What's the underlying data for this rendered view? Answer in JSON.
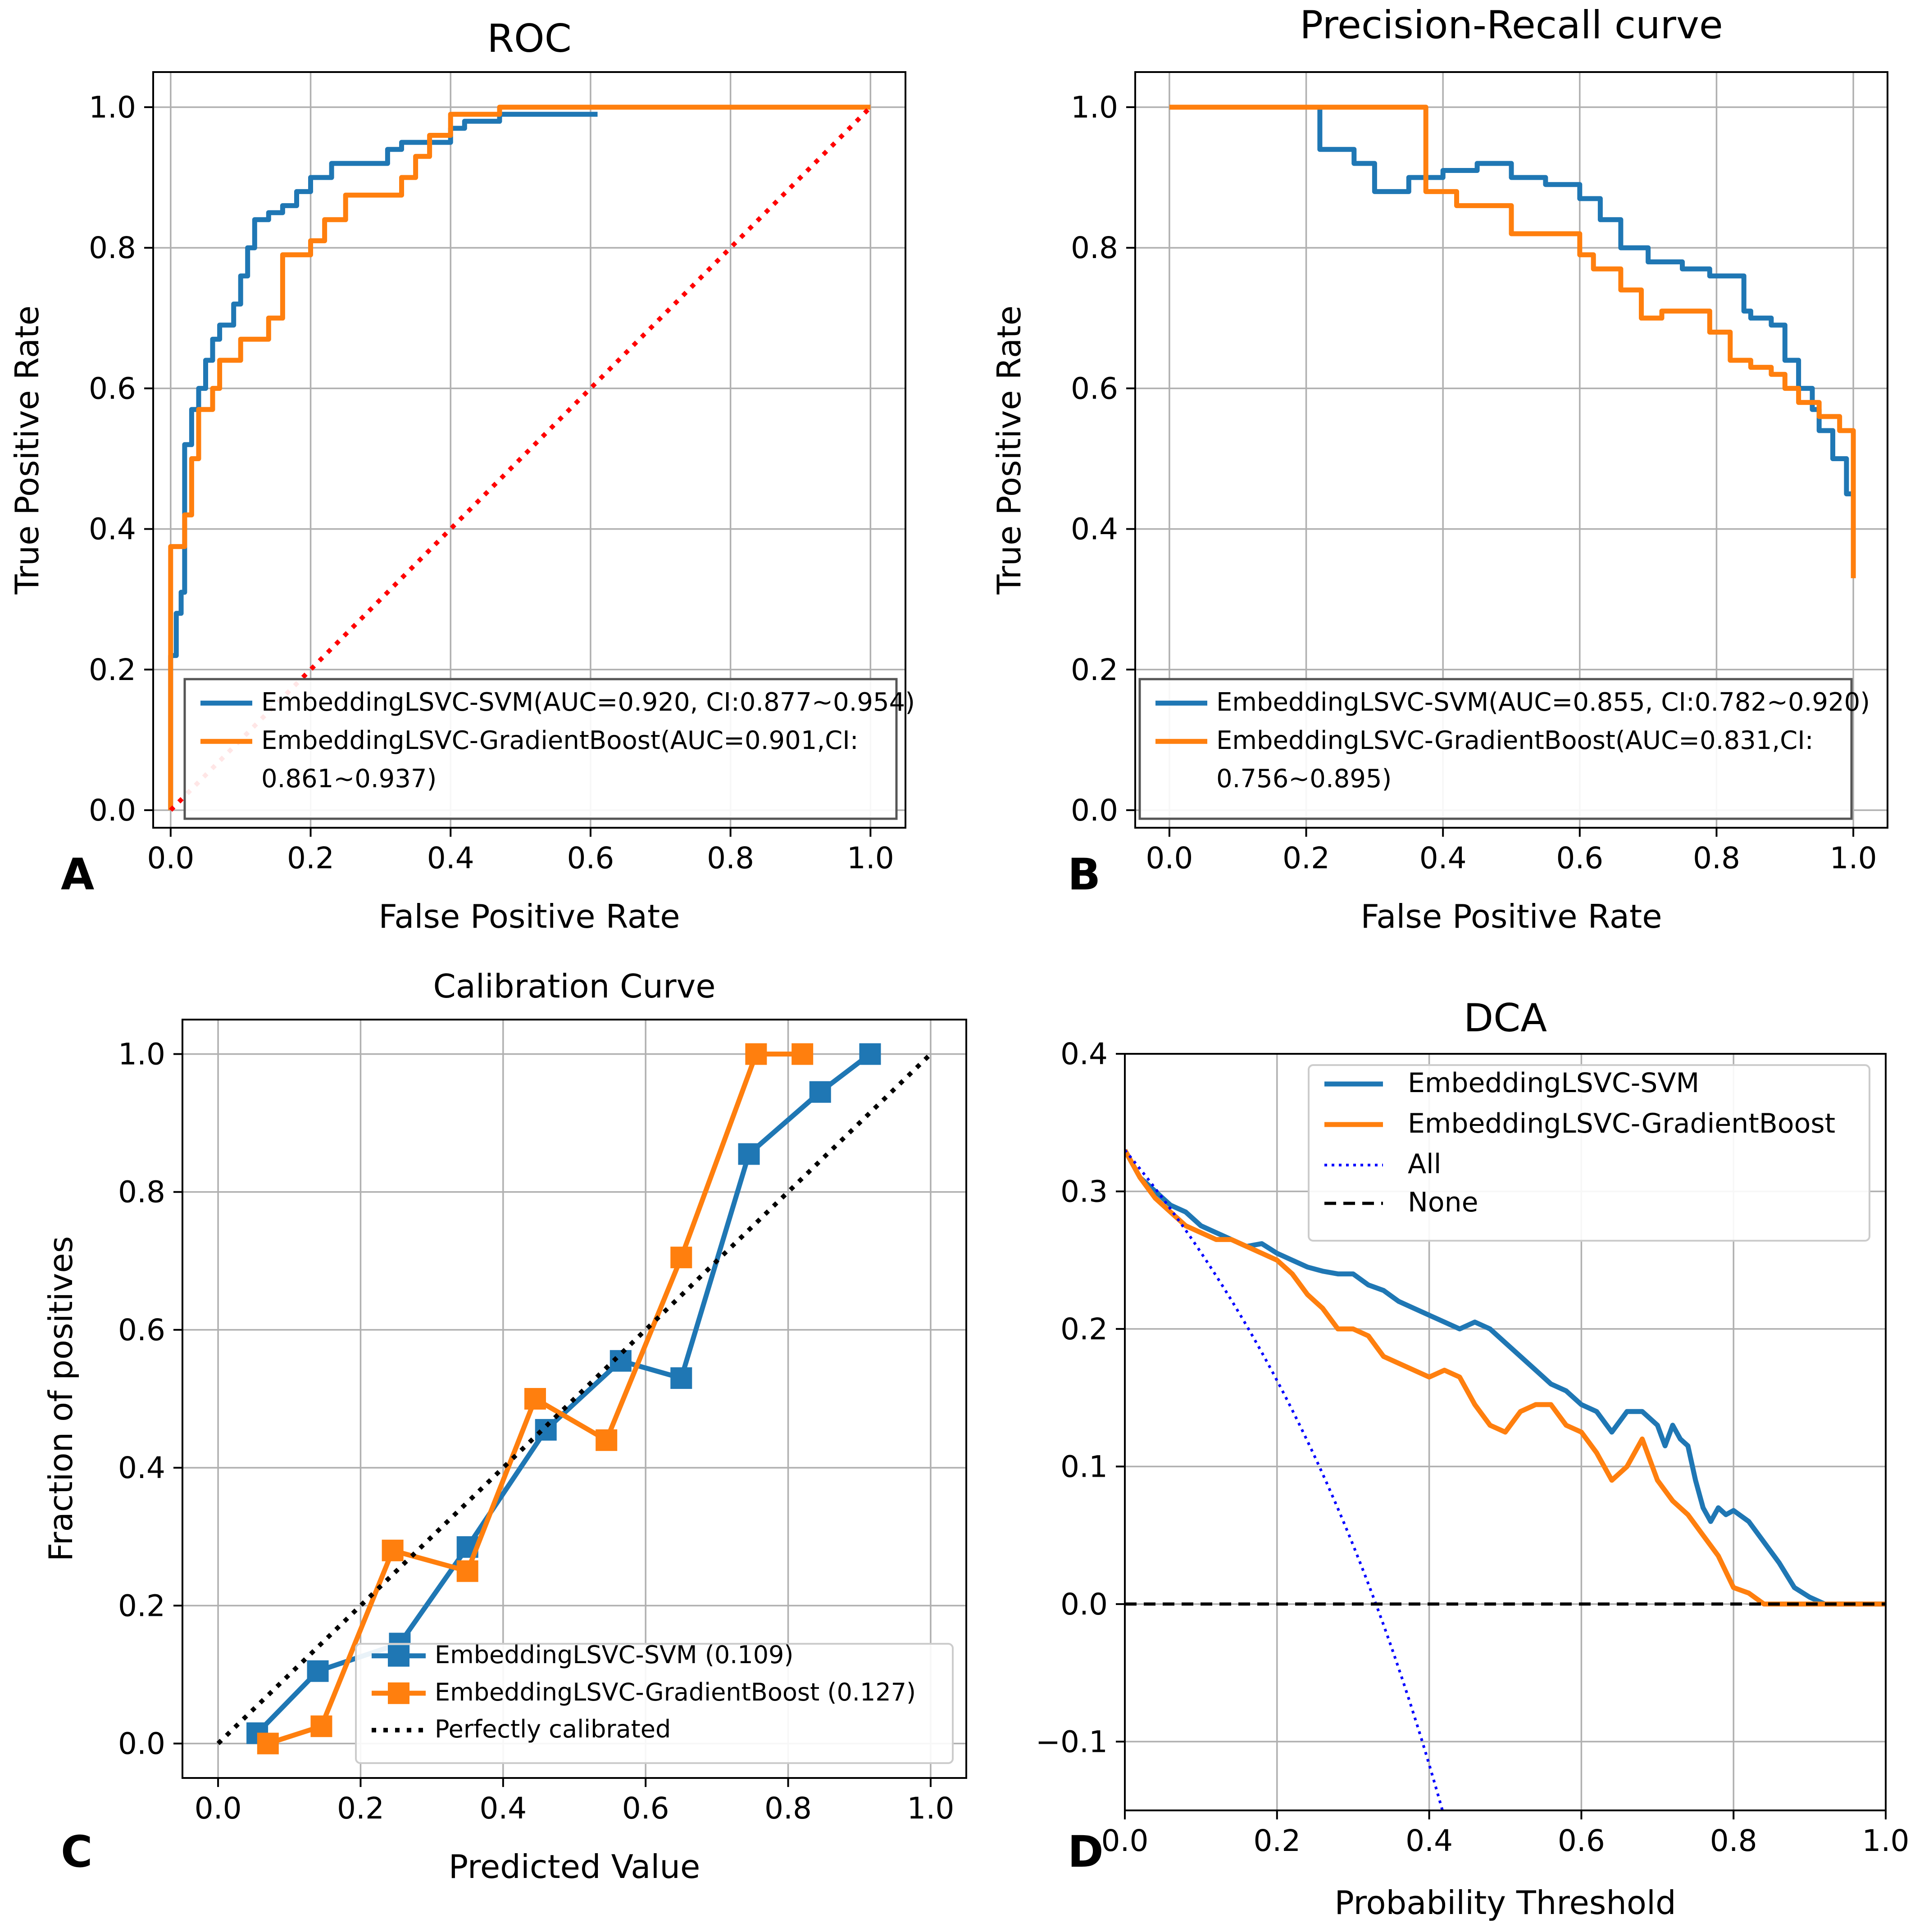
{
  "chart_data": [
    {
      "panel_letter": "A",
      "type": "line",
      "title": "ROC",
      "xlabel": "False Positive Rate",
      "ylabel": "True Positive Rate",
      "xlim": [
        -0.025,
        1.05
      ],
      "ylim": [
        -0.025,
        1.05
      ],
      "xticks": [
        0.0,
        0.2,
        0.4,
        0.6,
        0.8,
        1.0
      ],
      "yticks": [
        0.0,
        0.2,
        0.4,
        0.6,
        0.8,
        1.0
      ],
      "xtick_labels": [
        "0.0",
        "0.2",
        "0.4",
        "0.6",
        "0.8",
        "1.0"
      ],
      "ytick_labels": [
        "0.0",
        "0.2",
        "0.4",
        "0.6",
        "0.8",
        "1.0"
      ],
      "grid": true,
      "legend_position": "lower-right",
      "series": [
        {
          "name": "EmbeddingLSVC-SVM(AUC=0.920, CI:0.877~0.954)",
          "color": "#1f77b4",
          "step": true,
          "x": [
            0.0,
            0.0,
            0.008,
            0.008,
            0.015,
            0.015,
            0.02,
            0.02,
            0.03,
            0.03,
            0.04,
            0.04,
            0.05,
            0.05,
            0.06,
            0.06,
            0.07,
            0.07,
            0.09,
            0.09,
            0.1,
            0.1,
            0.11,
            0.11,
            0.12,
            0.12,
            0.14,
            0.14,
            0.16,
            0.16,
            0.18,
            0.18,
            0.2,
            0.2,
            0.23,
            0.23,
            0.31,
            0.31,
            0.33,
            0.33,
            0.4,
            0.4,
            0.42,
            0.42,
            0.47,
            0.47,
            0.61
          ],
          "y": [
            0.0,
            0.22,
            0.22,
            0.28,
            0.28,
            0.31,
            0.31,
            0.52,
            0.52,
            0.57,
            0.57,
            0.6,
            0.6,
            0.64,
            0.64,
            0.67,
            0.67,
            0.69,
            0.69,
            0.72,
            0.72,
            0.76,
            0.76,
            0.8,
            0.8,
            0.84,
            0.84,
            0.85,
            0.85,
            0.86,
            0.86,
            0.88,
            0.88,
            0.9,
            0.9,
            0.92,
            0.92,
            0.94,
            0.94,
            0.95,
            0.95,
            0.97,
            0.97,
            0.98,
            0.98,
            0.99,
            0.99
          ]
        },
        {
          "name": "EmbeddingLSVC-GradientBoost(AUC=0.901,CI: 0.861~0.937)",
          "color": "#ff7f0e",
          "step": true,
          "x": [
            0.0,
            0.0,
            0.02,
            0.02,
            0.03,
            0.03,
            0.04,
            0.04,
            0.06,
            0.06,
            0.07,
            0.07,
            0.1,
            0.1,
            0.14,
            0.14,
            0.16,
            0.16,
            0.2,
            0.2,
            0.22,
            0.22,
            0.25,
            0.25,
            0.33,
            0.33,
            0.35,
            0.35,
            0.37,
            0.37,
            0.4,
            0.4,
            0.47,
            0.47,
            1.0
          ],
          "y": [
            0.0,
            0.375,
            0.375,
            0.42,
            0.42,
            0.5,
            0.5,
            0.57,
            0.57,
            0.6,
            0.6,
            0.64,
            0.64,
            0.67,
            0.67,
            0.7,
            0.7,
            0.79,
            0.79,
            0.81,
            0.81,
            0.84,
            0.84,
            0.875,
            0.875,
            0.9,
            0.9,
            0.93,
            0.93,
            0.96,
            0.96,
            0.99,
            0.99,
            1.0,
            1.0
          ]
        },
        {
          "name": "chance",
          "color": "#ff0000",
          "dash": "dotted",
          "x": [
            0.0,
            1.0
          ],
          "y": [
            0.0,
            1.0
          ]
        }
      ]
    },
    {
      "panel_letter": "B",
      "type": "line",
      "title": "Precision-Recall curve",
      "xlabel": "False Positive Rate",
      "ylabel": "True Positive Rate",
      "xlim": [
        -0.05,
        1.05
      ],
      "ylim": [
        -0.025,
        1.05
      ],
      "xticks": [
        0.0,
        0.2,
        0.4,
        0.6,
        0.8,
        1.0
      ],
      "yticks": [
        0.0,
        0.2,
        0.4,
        0.6,
        0.8,
        1.0
      ],
      "xtick_labels": [
        "0.0",
        "0.2",
        "0.4",
        "0.6",
        "0.8",
        "1.0"
      ],
      "ytick_labels": [
        "0.0",
        "0.2",
        "0.4",
        "0.6",
        "0.8",
        "1.0"
      ],
      "grid": true,
      "legend_position": "lower-right",
      "series": [
        {
          "name": "EmbeddingLSVC-SVM(AUC=0.855, CI:0.782~0.920)",
          "color": "#1f77b4",
          "step": true,
          "x": [
            0.0,
            0.22,
            0.22,
            0.27,
            0.27,
            0.3,
            0.3,
            0.35,
            0.35,
            0.4,
            0.4,
            0.45,
            0.45,
            0.5,
            0.5,
            0.55,
            0.55,
            0.6,
            0.6,
            0.63,
            0.63,
            0.66,
            0.66,
            0.7,
            0.7,
            0.75,
            0.75,
            0.79,
            0.79,
            0.84,
            0.84,
            0.85,
            0.85,
            0.88,
            0.88,
            0.9,
            0.9,
            0.92,
            0.92,
            0.94,
            0.94,
            0.95,
            0.95,
            0.97,
            0.97,
            0.99,
            0.99,
            1.0
          ],
          "y": [
            1.0,
            1.0,
            0.94,
            0.94,
            0.92,
            0.92,
            0.88,
            0.88,
            0.9,
            0.9,
            0.91,
            0.91,
            0.92,
            0.92,
            0.9,
            0.9,
            0.89,
            0.89,
            0.87,
            0.87,
            0.84,
            0.84,
            0.8,
            0.8,
            0.78,
            0.78,
            0.77,
            0.77,
            0.76,
            0.76,
            0.71,
            0.71,
            0.7,
            0.7,
            0.69,
            0.69,
            0.64,
            0.64,
            0.6,
            0.6,
            0.57,
            0.57,
            0.54,
            0.54,
            0.5,
            0.5,
            0.45,
            0.45
          ]
        },
        {
          "name": "EmbeddingLSVC-GradientBoost(AUC=0.831,CI: 0.756~0.895)",
          "color": "#ff7f0e",
          "step": true,
          "x": [
            0.0,
            0.375,
            0.375,
            0.42,
            0.42,
            0.5,
            0.5,
            0.6,
            0.6,
            0.62,
            0.62,
            0.66,
            0.66,
            0.69,
            0.69,
            0.72,
            0.72,
            0.79,
            0.79,
            0.82,
            0.82,
            0.85,
            0.85,
            0.88,
            0.88,
            0.9,
            0.9,
            0.92,
            0.92,
            0.95,
            0.95,
            0.98,
            0.98,
            1.0,
            1.0
          ],
          "y": [
            1.0,
            1.0,
            0.88,
            0.88,
            0.86,
            0.86,
            0.82,
            0.82,
            0.79,
            0.79,
            0.77,
            0.77,
            0.74,
            0.74,
            0.7,
            0.7,
            0.71,
            0.71,
            0.68,
            0.68,
            0.64,
            0.64,
            0.63,
            0.63,
            0.62,
            0.62,
            0.6,
            0.6,
            0.58,
            0.58,
            0.56,
            0.56,
            0.54,
            0.54,
            0.33
          ]
        }
      ]
    },
    {
      "panel_letter": "C",
      "type": "line",
      "title": "Calibration Curve",
      "xlabel": "Predicted Value",
      "ylabel": "Fraction of positives",
      "xlim": [
        -0.05,
        1.05
      ],
      "ylim": [
        -0.05,
        1.05
      ],
      "xticks": [
        0.0,
        0.2,
        0.4,
        0.6,
        0.8,
        1.0
      ],
      "yticks": [
        0.0,
        0.2,
        0.4,
        0.6,
        0.8,
        1.0
      ],
      "xtick_labels": [
        "0.0",
        "0.2",
        "0.4",
        "0.6",
        "0.8",
        "1.0"
      ],
      "ytick_labels": [
        "0.0",
        "0.2",
        "0.4",
        "0.6",
        "0.8",
        "1.0"
      ],
      "grid": true,
      "legend_position": "lower-right",
      "series": [
        {
          "name": "EmbeddingLSVC-SVM (0.109)",
          "color": "#1f77b4",
          "marker": "square",
          "x": [
            0.055,
            0.14,
            0.255,
            0.35,
            0.46,
            0.565,
            0.65,
            0.745,
            0.845,
            0.915
          ],
          "y": [
            0.015,
            0.105,
            0.145,
            0.285,
            0.455,
            0.555,
            0.53,
            0.855,
            0.945,
            1.0
          ]
        },
        {
          "name": "EmbeddingLSVC-GradientBoost (0.127)",
          "color": "#ff7f0e",
          "marker": "square",
          "x": [
            0.07,
            0.145,
            0.245,
            0.35,
            0.445,
            0.545,
            0.65,
            0.755,
            0.82
          ],
          "y": [
            0.0,
            0.025,
            0.28,
            0.25,
            0.5,
            0.44,
            0.705,
            1.0,
            1.0
          ]
        },
        {
          "name": "Perfectly calibrated",
          "color": "#000000",
          "dash": "dotted",
          "x": [
            0.0,
            1.0
          ],
          "y": [
            0.0,
            1.0
          ]
        }
      ]
    },
    {
      "panel_letter": "D",
      "type": "line",
      "title": "DCA",
      "xlabel": "Probability Threshold",
      "ylabel": "",
      "xlim": [
        0.0,
        1.0
      ],
      "ylim": [
        -0.15,
        0.4
      ],
      "xticks": [
        0.0,
        0.2,
        0.4,
        0.6,
        0.8,
        1.0
      ],
      "yticks": [
        -0.1,
        0.0,
        0.1,
        0.2,
        0.3,
        0.4
      ],
      "xtick_labels": [
        "0.0",
        "0.2",
        "0.4",
        "0.6",
        "0.8",
        "1.0"
      ],
      "ytick_labels": [
        "−0.1",
        "0.0",
        "0.1",
        "0.2",
        "0.3",
        "0.4"
      ],
      "grid": true,
      "legend_position": "top-right",
      "series": [
        {
          "name": "EmbeddingLSVC-SVM",
          "color": "#1f77b4",
          "x": [
            0.0,
            0.02,
            0.04,
            0.06,
            0.08,
            0.1,
            0.12,
            0.14,
            0.16,
            0.18,
            0.2,
            0.22,
            0.24,
            0.26,
            0.28,
            0.3,
            0.32,
            0.34,
            0.36,
            0.38,
            0.4,
            0.42,
            0.44,
            0.46,
            0.48,
            0.5,
            0.52,
            0.54,
            0.56,
            0.58,
            0.6,
            0.62,
            0.64,
            0.66,
            0.68,
            0.7,
            0.71,
            0.72,
            0.73,
            0.74,
            0.75,
            0.76,
            0.77,
            0.78,
            0.79,
            0.8,
            0.82,
            0.84,
            0.86,
            0.88,
            0.9,
            0.92,
            1.0
          ],
          "y": [
            0.33,
            0.31,
            0.3,
            0.29,
            0.285,
            0.275,
            0.27,
            0.265,
            0.26,
            0.262,
            0.255,
            0.25,
            0.245,
            0.242,
            0.24,
            0.24,
            0.232,
            0.228,
            0.22,
            0.215,
            0.21,
            0.205,
            0.2,
            0.205,
            0.2,
            0.19,
            0.18,
            0.17,
            0.16,
            0.155,
            0.145,
            0.14,
            0.125,
            0.14,
            0.14,
            0.13,
            0.115,
            0.13,
            0.12,
            0.115,
            0.09,
            0.07,
            0.06,
            0.07,
            0.065,
            0.068,
            0.06,
            0.045,
            0.03,
            0.012,
            0.005,
            0.0,
            0.0
          ]
        },
        {
          "name": "EmbeddingLSVC-GradientBoost",
          "color": "#ff7f0e",
          "x": [
            0.0,
            0.02,
            0.04,
            0.06,
            0.08,
            0.1,
            0.12,
            0.14,
            0.16,
            0.18,
            0.2,
            0.22,
            0.24,
            0.26,
            0.28,
            0.3,
            0.32,
            0.34,
            0.36,
            0.38,
            0.4,
            0.42,
            0.44,
            0.46,
            0.48,
            0.5,
            0.52,
            0.54,
            0.56,
            0.58,
            0.6,
            0.62,
            0.64,
            0.66,
            0.68,
            0.7,
            0.72,
            0.74,
            0.76,
            0.78,
            0.8,
            0.82,
            0.84,
            1.0
          ],
          "y": [
            0.33,
            0.31,
            0.295,
            0.285,
            0.275,
            0.27,
            0.265,
            0.265,
            0.26,
            0.255,
            0.25,
            0.24,
            0.225,
            0.215,
            0.2,
            0.2,
            0.195,
            0.18,
            0.175,
            0.17,
            0.165,
            0.17,
            0.165,
            0.145,
            0.13,
            0.125,
            0.14,
            0.145,
            0.145,
            0.13,
            0.125,
            0.11,
            0.09,
            0.1,
            0.12,
            0.09,
            0.075,
            0.065,
            0.05,
            0.035,
            0.012,
            0.008,
            0.0,
            0.0
          ]
        },
        {
          "name": "All",
          "color": "#0000ff",
          "dash": "dotted",
          "prevalence": 0.33
        },
        {
          "name": "None",
          "color": "#000000",
          "dash": "dashed",
          "x": [
            0.0,
            1.0
          ],
          "y": [
            0.0,
            0.0
          ]
        }
      ]
    }
  ]
}
